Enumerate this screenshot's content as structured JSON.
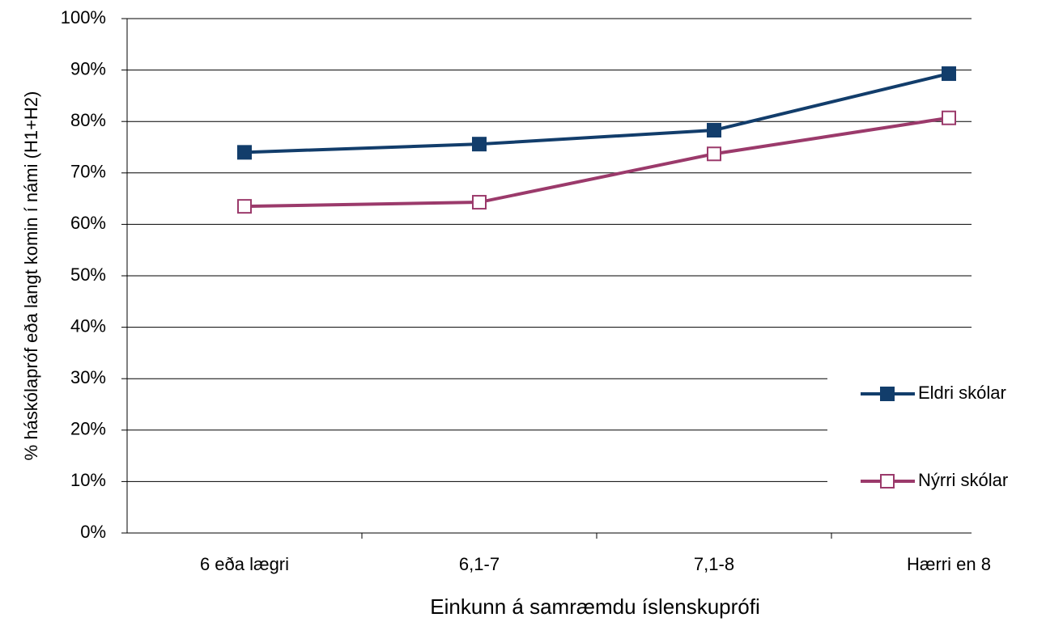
{
  "chart_data": {
    "type": "line",
    "x_label": "Einkunn á samræmdu íslenskuprófi",
    "y_label": "% háskólapróf eða langt komin í námi (H1+H2)",
    "categories": [
      "6 eða lægri",
      "6,1-7",
      "7,1-8",
      "Hærri en 8"
    ],
    "series": [
      {
        "name": "Eldri skólar",
        "color": "#123d6b",
        "marker_filled": true,
        "values": [
          74,
          75.6,
          78.3,
          89.3
        ]
      },
      {
        "name": "Nýrri skólar",
        "color": "#9b3a6b",
        "marker_filled": false,
        "values": [
          63.5,
          64.3,
          73.7,
          80.7
        ]
      }
    ],
    "ylim": [
      0,
      100
    ],
    "yticks": [
      {
        "value": 0,
        "label": "0%"
      },
      {
        "value": 10,
        "label": "10%"
      },
      {
        "value": 20,
        "label": "20%"
      },
      {
        "value": 30,
        "label": "30%"
      },
      {
        "value": 40,
        "label": "40%"
      },
      {
        "value": 50,
        "label": "50%"
      },
      {
        "value": 60,
        "label": "60%"
      },
      {
        "value": 70,
        "label": "70%"
      },
      {
        "value": 80,
        "label": "80%"
      },
      {
        "value": 90,
        "label": "90%"
      },
      {
        "value": 100,
        "label": "100%"
      }
    ],
    "grid": true,
    "legend": "right"
  }
}
